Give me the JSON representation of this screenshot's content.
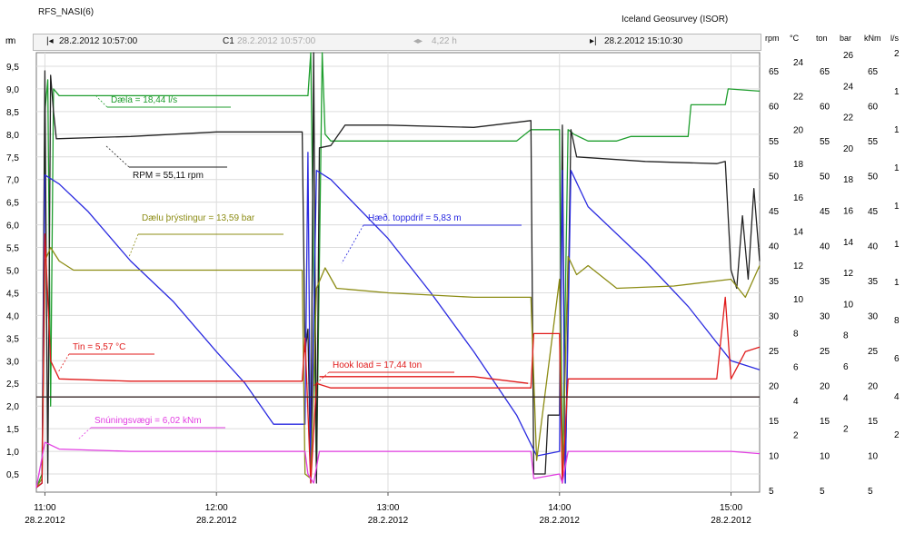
{
  "header": {
    "title": "RFS_NASI(6)",
    "organization": "Iceland Geosurvey (ISOR)"
  },
  "toolbar": {
    "start_icon": "m",
    "start_time": "28.2.2012 10:57:00",
    "cursor_label": "C1",
    "cursor_time": "28.2.2012 10:57:00",
    "span": "4,22 h",
    "end_time": "28.2.2012 15:10:30"
  },
  "colors": {
    "flow": "#1f9e2e",
    "rpm": "#222222",
    "hook_height": "#2a2ae0",
    "pressure": "#8c8c14",
    "temperature": "#e01a1a",
    "torque": "#e23de2",
    "reference": "#3a2a2a"
  },
  "chart_data": {
    "type": "line",
    "title": "",
    "grid": true,
    "legend": "inline",
    "xlim": [
      "10:57",
      "15:10"
    ],
    "ylim": [
      0.1,
      9.8
    ],
    "x_ticks": [
      {
        "time": "11:00",
        "date": "28.2.2012"
      },
      {
        "time": "12:00",
        "date": "28.2.2012"
      },
      {
        "time": "13:00",
        "date": "28.2.2012"
      },
      {
        "time": "14:00",
        "date": "28.2.2012"
      },
      {
        "time": "15:00",
        "date": "28.2.2012"
      }
    ],
    "left_axis": {
      "label": "m",
      "ticks": [
        "9,5",
        "9,0",
        "8,5",
        "8,0",
        "7,5",
        "7,0",
        "6,5",
        "6,0",
        "5,5",
        "5,0",
        "4,5",
        "4,0",
        "3,5",
        "3,0",
        "2,5",
        "2,0",
        "1,5",
        "1,0",
        "0,5"
      ]
    },
    "right_axes": [
      {
        "unit": "rpm",
        "ticks": [
          "65",
          "60",
          "55",
          "50",
          "45",
          "40",
          "35",
          "30",
          "25",
          "20",
          "15",
          "10",
          "5"
        ]
      },
      {
        "unit": "°C",
        "ticks": [
          "24",
          "22",
          "20",
          "18",
          "16",
          "14",
          "12",
          "10",
          "8",
          "6",
          "4",
          "2"
        ]
      },
      {
        "unit": "ton",
        "ticks": [
          "65",
          "60",
          "55",
          "50",
          "45",
          "40",
          "35",
          "30",
          "25",
          "20",
          "15",
          "10",
          "5"
        ]
      },
      {
        "unit": "bar",
        "ticks": [
          "26",
          "24",
          "22",
          "20",
          "18",
          "16",
          "14",
          "12",
          "10",
          "8",
          "6",
          "4",
          "2"
        ]
      },
      {
        "unit": "kNm",
        "ticks": [
          "65",
          "60",
          "55",
          "50",
          "45",
          "40",
          "35",
          "30",
          "25",
          "20",
          "15",
          "10",
          "5"
        ]
      },
      {
        "unit": "l/s",
        "ticks": [
          "2",
          "1",
          "1",
          "1",
          "1",
          "1",
          "1",
          "8",
          "6",
          "4",
          "2"
        ]
      }
    ],
    "series": [
      {
        "name": "Dæla = 18,44 l/s",
        "color_key": "flow",
        "points": [
          [
            "10:57",
            0.2
          ],
          [
            "10:59",
            0.5
          ],
          [
            "11:00",
            8.5
          ],
          [
            "11:01",
            9.2
          ],
          [
            "11:02",
            2.0
          ],
          [
            "11:03",
            9.0
          ],
          [
            "11:05",
            8.85
          ],
          [
            "11:30",
            8.85
          ],
          [
            "12:00",
            8.85
          ],
          [
            "12:15",
            8.85
          ],
          [
            "12:32",
            8.85
          ],
          [
            "12:33",
            9.8
          ],
          [
            "12:35",
            0.4
          ],
          [
            "12:37",
            9.8
          ],
          [
            "12:38",
            8.0
          ],
          [
            "12:40",
            7.85
          ],
          [
            "13:00",
            7.85
          ],
          [
            "13:30",
            7.85
          ],
          [
            "13:45",
            7.85
          ],
          [
            "13:50",
            8.1
          ],
          [
            "14:00",
            8.1
          ],
          [
            "14:01",
            0.3
          ],
          [
            "14:03",
            8.1
          ],
          [
            "14:05",
            8.0
          ],
          [
            "14:10",
            7.85
          ],
          [
            "14:20",
            7.85
          ],
          [
            "14:25",
            7.95
          ],
          [
            "14:45",
            7.95
          ],
          [
            "14:46",
            8.65
          ],
          [
            "14:58",
            8.65
          ],
          [
            "14:59",
            9.0
          ],
          [
            "15:10",
            8.95
          ]
        ]
      },
      {
        "name": "RPM = 55,11 rpm",
        "color_key": "rpm",
        "points": [
          [
            "10:57",
            0.2
          ],
          [
            "10:59",
            0.3
          ],
          [
            "11:00",
            9.4
          ],
          [
            "11:01",
            0.3
          ],
          [
            "11:02",
            9.3
          ],
          [
            "11:03",
            8.5
          ],
          [
            "11:04",
            7.9
          ],
          [
            "11:30",
            7.95
          ],
          [
            "12:00",
            8.05
          ],
          [
            "12:30",
            8.05
          ],
          [
            "12:31",
            3.2
          ],
          [
            "12:32",
            3.7
          ],
          [
            "12:33",
            0.4
          ],
          [
            "12:34",
            9.8
          ],
          [
            "12:35",
            0.3
          ],
          [
            "12:36",
            7.7
          ],
          [
            "12:40",
            7.75
          ],
          [
            "12:45",
            8.2
          ],
          [
            "13:00",
            8.2
          ],
          [
            "13:30",
            8.15
          ],
          [
            "13:50",
            8.3
          ],
          [
            "13:51",
            0.5
          ],
          [
            "13:55",
            0.5
          ],
          [
            "13:56",
            1.8
          ],
          [
            "14:00",
            1.8
          ],
          [
            "14:01",
            8.2
          ],
          [
            "14:02",
            0.3
          ],
          [
            "14:04",
            8.1
          ],
          [
            "14:06",
            7.5
          ],
          [
            "14:30",
            7.4
          ],
          [
            "14:55",
            7.35
          ],
          [
            "14:58",
            7.4
          ],
          [
            "15:00",
            5.0
          ],
          [
            "15:02",
            4.6
          ],
          [
            "15:04",
            6.2
          ],
          [
            "15:06",
            4.8
          ],
          [
            "15:08",
            6.8
          ],
          [
            "15:10",
            5.2
          ]
        ]
      },
      {
        "name": "Hæð. toppdrif = 5,83 m",
        "color_key": "hook_height",
        "points": [
          [
            "10:57",
            0.2
          ],
          [
            "10:59",
            0.3
          ],
          [
            "11:00",
            7.1
          ],
          [
            "11:05",
            6.9
          ],
          [
            "11:15",
            6.3
          ],
          [
            "11:30",
            5.2
          ],
          [
            "11:45",
            4.3
          ],
          [
            "12:00",
            3.2
          ],
          [
            "12:10",
            2.5
          ],
          [
            "12:20",
            1.6
          ],
          [
            "12:31",
            1.6
          ],
          [
            "12:32",
            7.6
          ],
          [
            "12:33",
            0.3
          ],
          [
            "12:35",
            7.2
          ],
          [
            "12:40",
            7.0
          ],
          [
            "13:00",
            5.7
          ],
          [
            "13:15",
            4.5
          ],
          [
            "13:30",
            3.2
          ],
          [
            "13:45",
            1.8
          ],
          [
            "13:52",
            0.9
          ],
          [
            "14:00",
            1.0
          ],
          [
            "14:01",
            7.2
          ],
          [
            "14:02",
            0.3
          ],
          [
            "14:04",
            7.2
          ],
          [
            "14:10",
            6.4
          ],
          [
            "14:30",
            5.2
          ],
          [
            "14:45",
            4.2
          ],
          [
            "15:00",
            3.0
          ],
          [
            "15:10",
            2.8
          ]
        ]
      },
      {
        "name": "Dælu þrýstingur = 13,59 bar",
        "color_key": "pressure",
        "points": [
          [
            "10:57",
            0.2
          ],
          [
            "10:59",
            0.4
          ],
          [
            "11:00",
            5.2
          ],
          [
            "11:02",
            5.5
          ],
          [
            "11:05",
            5.2
          ],
          [
            "11:10",
            5.0
          ],
          [
            "11:30",
            5.0
          ],
          [
            "12:00",
            5.0
          ],
          [
            "12:30",
            5.0
          ],
          [
            "12:31",
            0.5
          ],
          [
            "12:33",
            0.4
          ],
          [
            "12:35",
            4.6
          ],
          [
            "12:38",
            5.05
          ],
          [
            "12:42",
            4.6
          ],
          [
            "13:00",
            4.5
          ],
          [
            "13:30",
            4.4
          ],
          [
            "13:50",
            4.4
          ],
          [
            "13:52",
            0.8
          ],
          [
            "14:00",
            4.8
          ],
          [
            "14:01",
            0.3
          ],
          [
            "14:03",
            5.3
          ],
          [
            "14:06",
            4.9
          ],
          [
            "14:10",
            5.1
          ],
          [
            "14:20",
            4.6
          ],
          [
            "14:40",
            4.65
          ],
          [
            "15:00",
            4.8
          ],
          [
            "15:05",
            4.4
          ],
          [
            "15:10",
            5.1
          ]
        ]
      },
      {
        "name": "Tin = 5,57 °C",
        "color_key": "temperature",
        "points": [
          [
            "10:57",
            0.2
          ],
          [
            "10:59",
            0.3
          ],
          [
            "11:00",
            5.8
          ],
          [
            "11:02",
            3.0
          ],
          [
            "11:05",
            2.6
          ],
          [
            "11:30",
            2.55
          ],
          [
            "12:00",
            2.55
          ],
          [
            "12:30",
            2.55
          ],
          [
            "12:31",
            3.5
          ],
          [
            "12:33",
            0.3
          ],
          [
            "12:35",
            2.5
          ],
          [
            "12:40",
            2.4
          ],
          [
            "13:00",
            2.4
          ],
          [
            "13:30",
            2.4
          ],
          [
            "13:50",
            2.4
          ],
          [
            "13:51",
            3.6
          ],
          [
            "14:00",
            3.6
          ],
          [
            "14:01",
            0.3
          ],
          [
            "14:03",
            2.6
          ],
          [
            "14:10",
            2.6
          ],
          [
            "14:30",
            2.6
          ],
          [
            "14:55",
            2.6
          ],
          [
            "14:58",
            4.4
          ],
          [
            "15:00",
            2.6
          ],
          [
            "15:05",
            3.2
          ],
          [
            "15:10",
            3.3
          ]
        ]
      },
      {
        "name": "Hook load = 17,44 ton",
        "color_key": "temperature",
        "points": [
          [
            "12:36",
            2.65
          ],
          [
            "13:00",
            2.65
          ],
          [
            "13:30",
            2.65
          ],
          [
            "13:49",
            2.5
          ]
        ]
      },
      {
        "name": "Snúningsvægi = 6,02 kNm",
        "color_key": "torque",
        "points": [
          [
            "10:57",
            0.2
          ],
          [
            "11:00",
            1.2
          ],
          [
            "11:05",
            1.05
          ],
          [
            "11:30",
            1.0
          ],
          [
            "12:00",
            1.0
          ],
          [
            "12:31",
            1.0
          ],
          [
            "12:32",
            0.5
          ],
          [
            "12:34",
            0.3
          ],
          [
            "12:36",
            1.0
          ],
          [
            "13:00",
            1.0
          ],
          [
            "13:30",
            1.0
          ],
          [
            "13:50",
            1.0
          ],
          [
            "13:51",
            0.4
          ],
          [
            "14:00",
            0.5
          ],
          [
            "14:01",
            0.3
          ],
          [
            "14:03",
            1.0
          ],
          [
            "14:30",
            1.0
          ],
          [
            "15:00",
            1.0
          ],
          [
            "15:10",
            0.95
          ]
        ]
      },
      {
        "name": "",
        "color_key": "reference",
        "points": [
          [
            "10:57",
            2.2
          ],
          [
            "15:10",
            2.2
          ]
        ]
      }
    ]
  }
}
